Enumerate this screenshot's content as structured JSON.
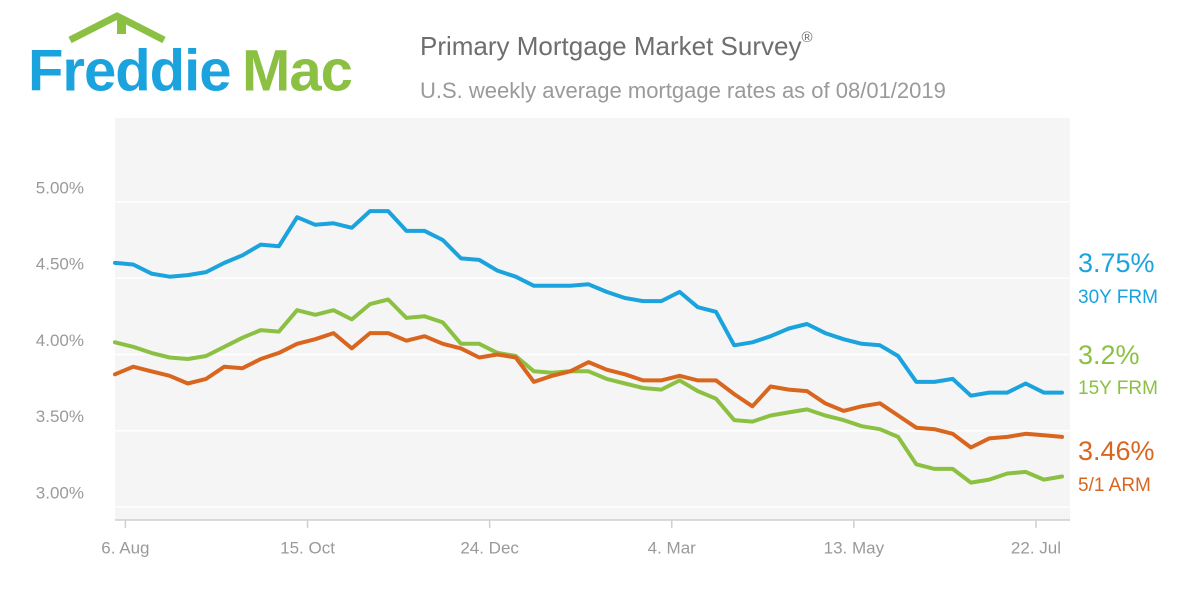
{
  "logo": {
    "first": "Freddie",
    "second": "Mac"
  },
  "chart_data": {
    "type": "line",
    "title": "Primary Mortgage Market Survey",
    "title_mark": "®",
    "subtitle": "U.S. weekly average mortgage rates as of 08/01/2019",
    "categories": [
      "6. Aug",
      null,
      null,
      null,
      null,
      null,
      null,
      null,
      null,
      null,
      "15. Oct",
      null,
      null,
      null,
      null,
      null,
      null,
      null,
      null,
      null,
      "24. Dec",
      null,
      null,
      null,
      null,
      null,
      null,
      null,
      null,
      null,
      "4. Mar",
      null,
      null,
      null,
      null,
      null,
      null,
      null,
      null,
      null,
      "13. May",
      null,
      null,
      null,
      null,
      null,
      null,
      null,
      null,
      null,
      "22. Jul",
      null,
      null
    ],
    "ylim": [
      2.915,
      5.55
    ],
    "yticks": [
      {
        "value": 3,
        "label": "3.00%"
      },
      {
        "value": 3.5,
        "label": "3.50%"
      },
      {
        "value": 4,
        "label": "4.00%"
      },
      {
        "value": 4.5,
        "label": "4.50%"
      },
      {
        "value": 5,
        "label": "5.00%"
      }
    ],
    "grid": true,
    "series": [
      {
        "name": "30Y FRM",
        "color": "#1ba3dd",
        "end_label": "3.75%",
        "values": [
          4.6,
          4.59,
          4.53,
          4.51,
          4.52,
          4.54,
          4.6,
          4.65,
          4.72,
          4.71,
          4.9,
          4.85,
          4.86,
          4.83,
          4.94,
          4.94,
          4.81,
          4.81,
          4.75,
          4.63,
          4.62,
          4.55,
          4.51,
          4.45,
          4.45,
          4.45,
          4.46,
          4.41,
          4.37,
          4.35,
          4.35,
          4.41,
          4.31,
          4.28,
          4.06,
          4.08,
          4.12,
          4.17,
          4.2,
          4.14,
          4.1,
          4.07,
          4.06,
          3.99,
          3.82,
          3.82,
          3.84,
          3.73,
          3.75,
          3.75,
          3.81,
          3.75,
          3.75
        ]
      },
      {
        "name": "15Y FRM",
        "color": "#8cc043",
        "end_label": "3.2%",
        "values": [
          4.08,
          4.05,
          4.01,
          3.98,
          3.97,
          3.99,
          4.05,
          4.11,
          4.16,
          4.15,
          4.29,
          4.26,
          4.29,
          4.23,
          4.33,
          4.36,
          4.24,
          4.25,
          4.21,
          4.07,
          4.07,
          4.01,
          3.99,
          3.89,
          3.88,
          3.89,
          3.89,
          3.84,
          3.81,
          3.78,
          3.77,
          3.83,
          3.76,
          3.71,
          3.57,
          3.56,
          3.6,
          3.62,
          3.64,
          3.6,
          3.57,
          3.53,
          3.51,
          3.46,
          3.28,
          3.25,
          3.25,
          3.16,
          3.18,
          3.22,
          3.23,
          3.18,
          3.2
        ]
      },
      {
        "name": "5/1 ARM",
        "color": "#d9661f",
        "end_label": "3.46%",
        "values": [
          3.87,
          3.92,
          3.89,
          3.86,
          3.81,
          3.84,
          3.92,
          3.91,
          3.97,
          4.01,
          4.07,
          4.1,
          4.14,
          4.04,
          4.14,
          4.14,
          4.09,
          4.12,
          4.07,
          4.04,
          3.98,
          4.0,
          3.98,
          3.82,
          3.86,
          3.89,
          3.95,
          3.9,
          3.87,
          3.83,
          3.83,
          3.86,
          3.83,
          3.83,
          3.74,
          3.66,
          3.79,
          3.77,
          3.76,
          3.68,
          3.63,
          3.66,
          3.68,
          3.6,
          3.52,
          3.51,
          3.48,
          3.39,
          3.45,
          3.46,
          3.48,
          3.47,
          3.46
        ]
      }
    ]
  }
}
